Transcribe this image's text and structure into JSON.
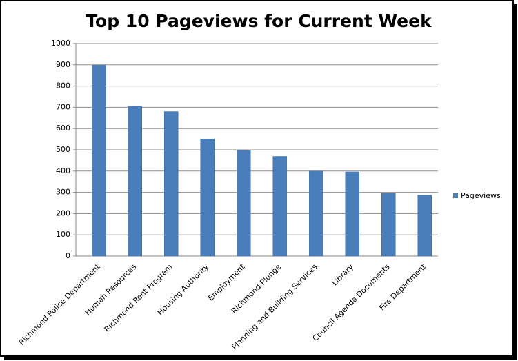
{
  "chart_data": {
    "type": "bar",
    "title": "Top 10 Pageviews for Current Week",
    "categories": [
      "Richmond Police Department",
      "Human Resources",
      "Richmond Rent Program",
      "Housing Authority",
      "Employment",
      "Richmond Plunge",
      "Planning and Building Services",
      "Library",
      "Council Agenda Documents",
      "Fire Department"
    ],
    "series": [
      {
        "name": "Pageviews",
        "color": "#4a7ebb",
        "values": [
          898,
          705,
          680,
          551,
          497,
          469,
          400,
          396,
          295,
          287
        ]
      }
    ],
    "ylim": [
      0,
      1000
    ],
    "yticks": [
      0,
      100,
      200,
      300,
      400,
      500,
      600,
      700,
      800,
      900,
      1000
    ],
    "grid": true,
    "legend": "right"
  }
}
